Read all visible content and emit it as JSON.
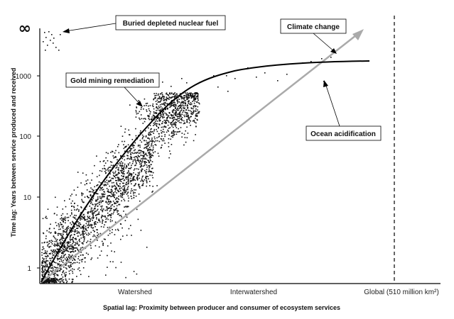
{
  "chart_data": {
    "type": "scatter",
    "title": "",
    "xlabel": "Spatial lag: Proximity between producer and consumer of ecosystem services",
    "ylabel": "Time lag: Years between service produced and received",
    "y_scale": "log",
    "y_ticks": [
      "1",
      "10",
      "100",
      "1000"
    ],
    "y_infinity_label": "∞",
    "x_ticks": [
      "Watershed",
      "Interwatershed"
    ],
    "x_end_label": "Global (510 million km²)",
    "grid": false,
    "legend": "none",
    "annotations": [
      {
        "text": "Buried depleted nuclear fuel"
      },
      {
        "text": "Climate change"
      },
      {
        "text": "Gold mining remediation"
      },
      {
        "text": "Ocean acidification"
      }
    ],
    "series": [
      {
        "style": "scatter points, black"
      },
      {
        "style": "trend curve, black"
      },
      {
        "style": "straight line with arrowhead, gray"
      }
    ],
    "colors": {
      "points": "#111111",
      "trend": "#000000",
      "arrow_line": "#aaaaaa",
      "axis": "#000000"
    }
  }
}
